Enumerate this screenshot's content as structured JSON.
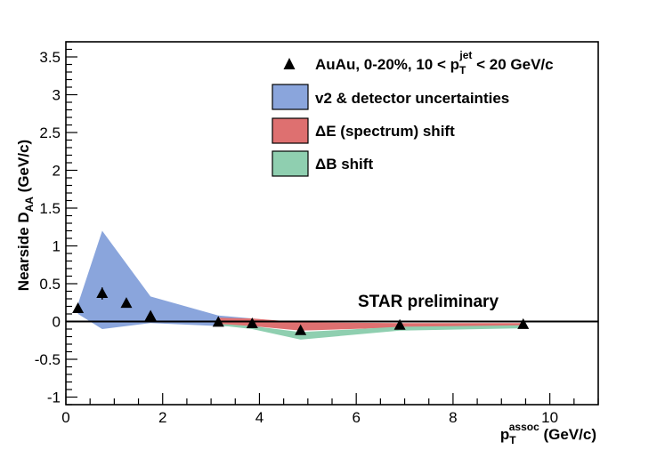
{
  "chart_data": {
    "type": "scatter",
    "xlabel": {
      "main": "p",
      "sub": "T",
      "sup": "assoc",
      "unit": " (GeV/c)"
    },
    "ylabel": {
      "main": "Nearside D",
      "sub": "AA",
      "unit": " (GeV/c)"
    },
    "xlim": [
      0,
      11
    ],
    "ylim": [
      -1.1,
      3.7
    ],
    "x_ticks": [
      0,
      2,
      4,
      6,
      8,
      10
    ],
    "y_ticks": [
      -1,
      -0.5,
      0,
      0.5,
      1,
      1.5,
      2,
      2.5,
      3,
      3.5
    ],
    "x_tick_labels": [
      "0",
      "2",
      "4",
      "6",
      "8",
      "10"
    ],
    "y_tick_labels": [
      "-1",
      "-0.5",
      "0",
      "0.5",
      "1",
      "1.5",
      "2",
      "2.5",
      "3",
      "3.5"
    ],
    "zero_line": true,
    "grid": false,
    "legend_position": "top-right",
    "annotation": "STAR preliminary",
    "series": [
      {
        "name": "AuAu, 0-20%, 10 < p_T^jet < 20 GeV/c",
        "legend": {
          "pre": "AuAu, 0-20%, 10 < p",
          "sub": "T",
          "sup": "jet",
          "post": " < 20 GeV/c"
        },
        "marker": "triangle",
        "color": "#000000",
        "x": [
          0.25,
          0.75,
          1.25,
          1.75,
          3.15,
          3.85,
          4.85,
          6.9,
          9.45
        ],
        "y": [
          0.17,
          0.37,
          0.24,
          0.07,
          -0.01,
          -0.03,
          -0.12,
          -0.05,
          -0.04
        ],
        "err": [
          0.03,
          0.08,
          0.03,
          0.02,
          0.02,
          0.02,
          0.02,
          0.02,
          0.02
        ]
      }
    ],
    "bands": [
      {
        "name": "v2 & detector uncertainties",
        "color": "#8aa5dc",
        "x": [
          0.25,
          0.75,
          1.75,
          3.15,
          3.85,
          4.85,
          6.9,
          9.45
        ],
        "upper": [
          0.23,
          1.2,
          0.33,
          0.08,
          0.04,
          -0.02,
          -0.04,
          -0.03
        ],
        "lower": [
          0.1,
          -0.1,
          -0.02,
          -0.06,
          -0.07,
          -0.08,
          -0.06,
          -0.05
        ]
      },
      {
        "name": "ΔE (spectrum) shift",
        "color": "#de7070",
        "x": [
          3.15,
          3.85,
          4.85,
          6.9,
          9.45
        ],
        "upper": [
          0.05,
          0.04,
          -0.01,
          -0.02,
          -0.02
        ],
        "lower": [
          -0.04,
          -0.06,
          -0.12,
          -0.08,
          -0.06
        ]
      },
      {
        "name": "ΔB shift",
        "color": "#8fcfb0",
        "x": [
          3.15,
          3.85,
          4.85,
          6.9,
          9.45
        ],
        "upper": [
          -0.03,
          -0.06,
          -0.14,
          -0.07,
          -0.05
        ],
        "lower": [
          -0.05,
          -0.1,
          -0.24,
          -0.12,
          -0.09
        ]
      }
    ]
  }
}
